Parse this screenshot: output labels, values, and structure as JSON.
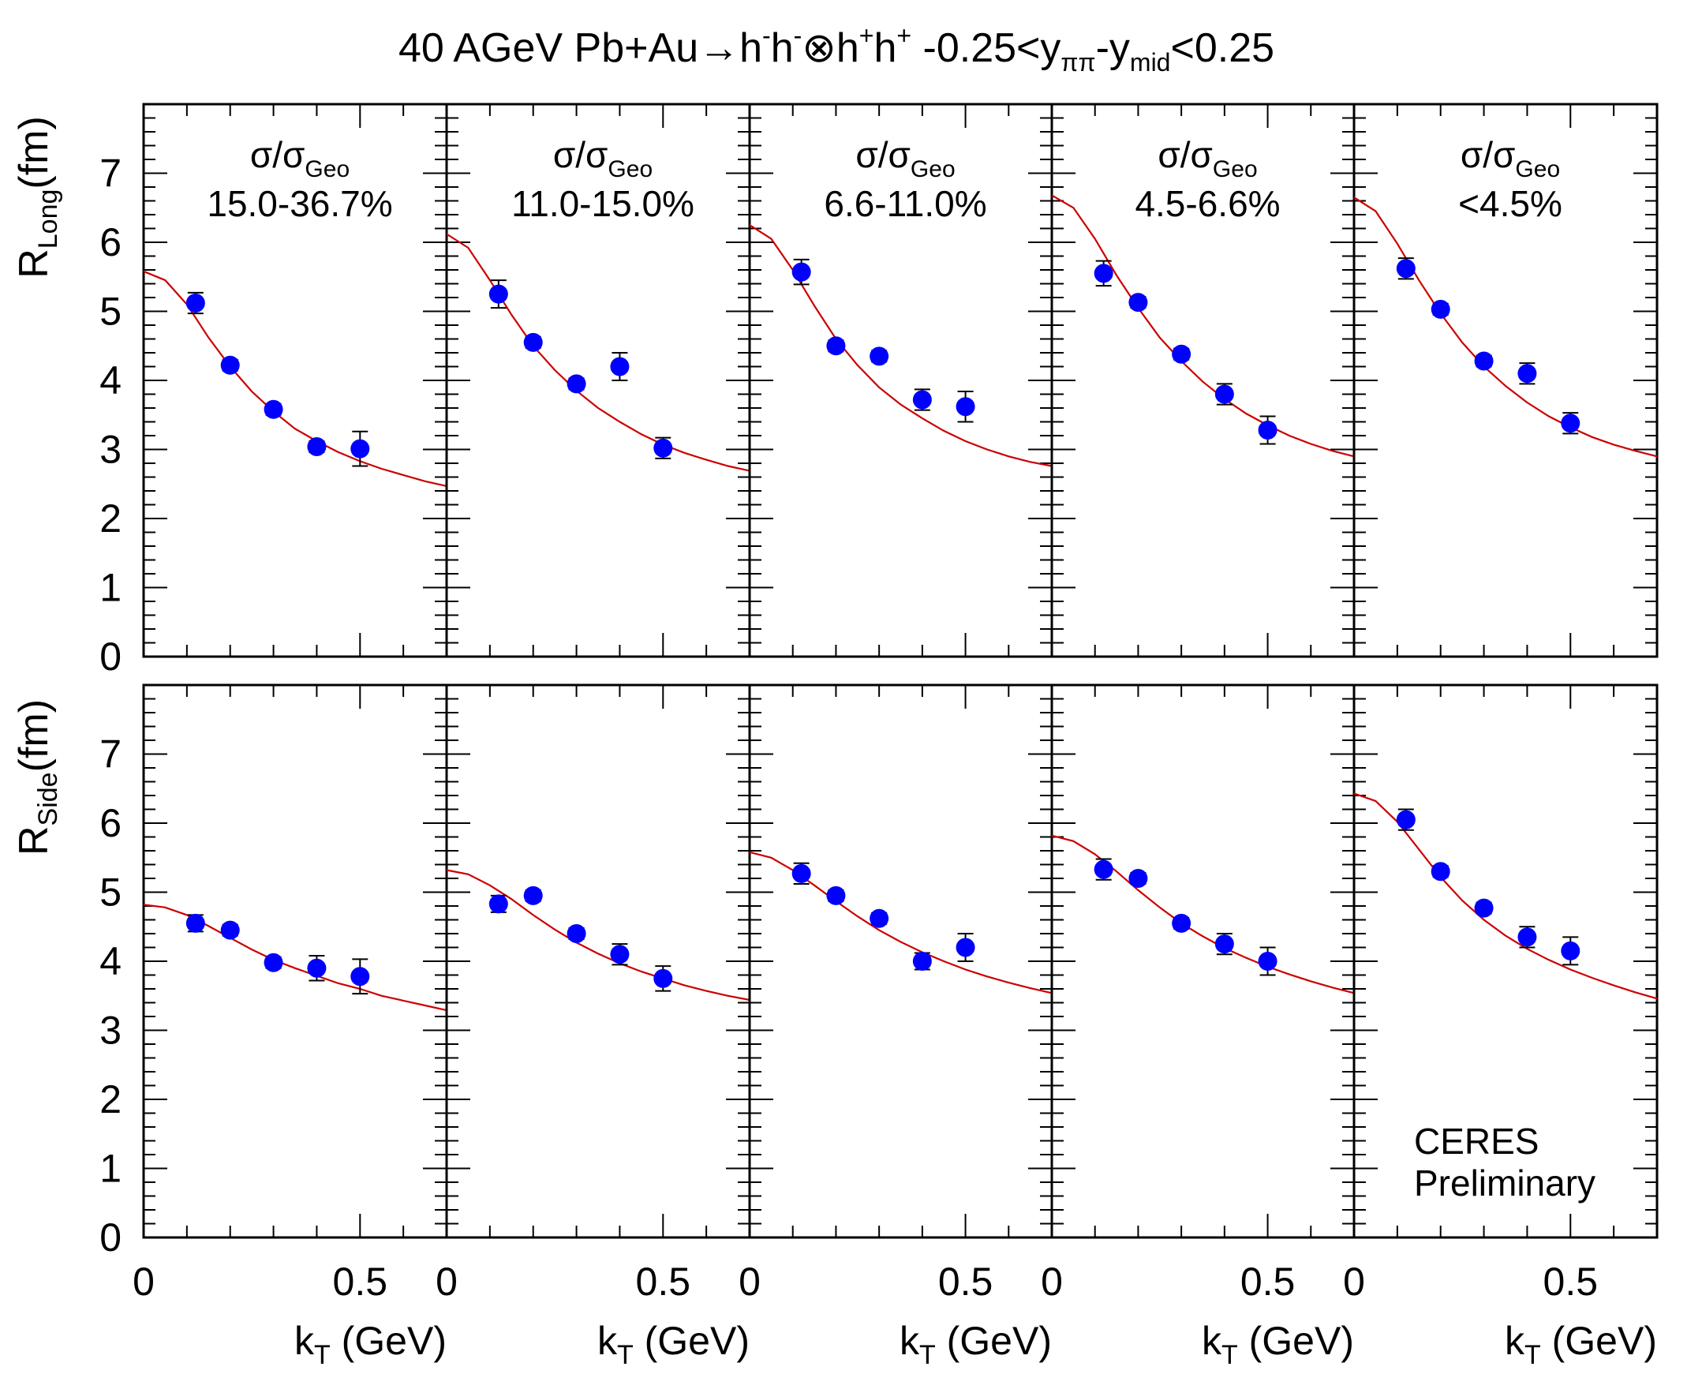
{
  "figure": {
    "title": "40 AGeV Pb+Au→h⁻h⁻⊗h⁺h⁺ -0.25<y_ππ-y_mid<0.25",
    "title_parts": {
      "main": "40 AGeV Pb+Au→h",
      "sup1": "-",
      "h2": "h",
      "sup2": "-",
      "otimes": "⊗h",
      "sup3": "+",
      "h4": "h",
      "sup4": "+",
      "range_left": " -0.25<y",
      "sub_pipi": "ππ",
      "dash_y": "-y",
      "sub_mid": "mid",
      "range_right": "<0.25"
    },
    "watermark_line1": "CERES",
    "watermark_line2": "Preliminary",
    "marker_color": "#0000ff",
    "fit_color": "#cc0000"
  },
  "chart_data": {
    "type": "scatter",
    "x_label": "k_T (GeV)",
    "x_label_base": "k",
    "x_label_sub": "T",
    "x_label_rest": " (GeV)",
    "xlim": [
      0,
      0.7
    ],
    "x_ticks": [
      "0",
      "0.5"
    ],
    "x_tick_values": [
      0,
      0.5
    ],
    "ylim": [
      0,
      8
    ],
    "y_ticks": [
      "0",
      "1",
      "2",
      "3",
      "4",
      "5",
      "6",
      "7"
    ],
    "y_tick_values": [
      0,
      1,
      2,
      3,
      4,
      5,
      6,
      7
    ],
    "legend": "none",
    "grid": false,
    "panels_header": "σ/σ_Geo",
    "header_base": "σ/σ",
    "header_sub": "Geo",
    "centralities": [
      "15.0-36.7%",
      "11.0-15.0%",
      "6.6-11.0%",
      "4.5-6.6%",
      "<4.5%"
    ],
    "rows": [
      {
        "quantity": "R_Long(fm)",
        "ylabel_base": "R",
        "ylabel_sub": "Long",
        "ylabel_rest": "(fm)",
        "panels": [
          {
            "x": [
              0.12,
              0.2,
              0.3,
              0.4,
              0.5
            ],
            "y": [
              5.12,
              4.22,
              3.58,
              3.04,
              3.01
            ],
            "yerr": [
              0.15,
              0.08,
              0.08,
              0.08,
              0.25
            ],
            "fit_x": [
              0.0,
              0.05,
              0.1,
              0.15,
              0.2,
              0.25,
              0.3,
              0.35,
              0.4,
              0.45,
              0.5,
              0.55,
              0.6,
              0.65,
              0.7
            ],
            "fit_y": [
              5.58,
              5.45,
              5.1,
              4.62,
              4.2,
              3.84,
              3.55,
              3.3,
              3.12,
              2.96,
              2.83,
              2.72,
              2.63,
              2.54,
              2.47
            ]
          },
          {
            "x": [
              0.12,
              0.2,
              0.3,
              0.4,
              0.5
            ],
            "y": [
              5.25,
              4.55,
              3.95,
              4.2,
              3.02
            ],
            "yerr": [
              0.2,
              0.08,
              0.08,
              0.2,
              0.15
            ],
            "fit_x": [
              0.0,
              0.05,
              0.1,
              0.15,
              0.2,
              0.25,
              0.3,
              0.35,
              0.4,
              0.45,
              0.5,
              0.55,
              0.6,
              0.65,
              0.7
            ],
            "fit_y": [
              6.12,
              5.92,
              5.45,
              4.95,
              4.5,
              4.15,
              3.85,
              3.6,
              3.4,
              3.22,
              3.07,
              2.95,
              2.85,
              2.76,
              2.69
            ]
          },
          {
            "x": [
              0.12,
              0.2,
              0.3,
              0.4,
              0.5
            ],
            "y": [
              5.57,
              4.5,
              4.35,
              3.72,
              3.62
            ],
            "yerr": [
              0.18,
              0.08,
              0.08,
              0.15,
              0.22
            ],
            "fit_x": [
              0.0,
              0.05,
              0.1,
              0.15,
              0.2,
              0.25,
              0.3,
              0.35,
              0.4,
              0.45,
              0.5,
              0.55,
              0.6,
              0.65,
              0.7
            ],
            "fit_y": [
              6.25,
              6.05,
              5.6,
              5.08,
              4.6,
              4.22,
              3.9,
              3.65,
              3.45,
              3.27,
              3.12,
              3.0,
              2.9,
              2.82,
              2.76
            ]
          },
          {
            "x": [
              0.12,
              0.2,
              0.3,
              0.4,
              0.5
            ],
            "y": [
              5.55,
              5.13,
              4.38,
              3.8,
              3.28
            ],
            "yerr": [
              0.18,
              0.08,
              0.08,
              0.15,
              0.2
            ],
            "fit_x": [
              0.0,
              0.05,
              0.1,
              0.15,
              0.2,
              0.25,
              0.3,
              0.35,
              0.4,
              0.45,
              0.5,
              0.55,
              0.6,
              0.65,
              0.7
            ],
            "fit_y": [
              6.68,
              6.5,
              6.05,
              5.52,
              5.05,
              4.62,
              4.28,
              3.98,
              3.73,
              3.52,
              3.35,
              3.2,
              3.08,
              2.98,
              2.9
            ]
          },
          {
            "x": [
              0.12,
              0.2,
              0.3,
              0.4,
              0.5
            ],
            "y": [
              5.62,
              5.03,
              4.28,
              4.1,
              3.38
            ],
            "yerr": [
              0.15,
              0.08,
              0.08,
              0.15,
              0.15
            ],
            "fit_x": [
              0.0,
              0.05,
              0.1,
              0.15,
              0.2,
              0.25,
              0.3,
              0.35,
              0.4,
              0.45,
              0.5,
              0.55,
              0.6,
              0.65,
              0.7
            ],
            "fit_y": [
              6.65,
              6.45,
              5.98,
              5.45,
              4.97,
              4.55,
              4.2,
              3.92,
              3.68,
              3.48,
              3.32,
              3.18,
              3.07,
              2.98,
              2.9
            ]
          }
        ]
      },
      {
        "quantity": "R_Side(fm)",
        "ylabel_base": "R",
        "ylabel_sub": "Side",
        "ylabel_rest": "(fm)",
        "panels": [
          {
            "x": [
              0.12,
              0.2,
              0.3,
              0.4,
              0.5
            ],
            "y": [
              4.55,
              4.45,
              3.98,
              3.9,
              3.78
            ],
            "yerr": [
              0.12,
              0.08,
              0.08,
              0.18,
              0.25
            ],
            "fit_x": [
              0.0,
              0.05,
              0.1,
              0.15,
              0.2,
              0.25,
              0.3,
              0.35,
              0.4,
              0.45,
              0.5,
              0.55,
              0.6,
              0.65,
              0.7
            ],
            "fit_y": [
              4.82,
              4.78,
              4.67,
              4.51,
              4.34,
              4.17,
              4.02,
              3.9,
              3.79,
              3.68,
              3.6,
              3.5,
              3.43,
              3.36,
              3.29
            ]
          },
          {
            "x": [
              0.12,
              0.2,
              0.3,
              0.4,
              0.5
            ],
            "y": [
              4.83,
              4.95,
              4.4,
              4.1,
              3.75
            ],
            "yerr": [
              0.12,
              0.08,
              0.08,
              0.15,
              0.18
            ],
            "fit_x": [
              0.0,
              0.05,
              0.1,
              0.15,
              0.2,
              0.25,
              0.3,
              0.35,
              0.4,
              0.45,
              0.5,
              0.55,
              0.6,
              0.65,
              0.7
            ],
            "fit_y": [
              5.32,
              5.26,
              5.1,
              4.9,
              4.67,
              4.46,
              4.27,
              4.11,
              3.97,
              3.85,
              3.75,
              3.65,
              3.57,
              3.5,
              3.44
            ]
          },
          {
            "x": [
              0.12,
              0.2,
              0.3,
              0.4,
              0.5
            ],
            "y": [
              5.27,
              4.95,
              4.62,
              4.0,
              4.2
            ],
            "yerr": [
              0.15,
              0.08,
              0.08,
              0.12,
              0.2
            ],
            "fit_x": [
              0.0,
              0.05,
              0.1,
              0.15,
              0.2,
              0.25,
              0.3,
              0.35,
              0.4,
              0.45,
              0.5,
              0.55,
              0.6,
              0.65,
              0.7
            ],
            "fit_y": [
              5.58,
              5.5,
              5.32,
              5.1,
              4.87,
              4.65,
              4.45,
              4.28,
              4.13,
              4.0,
              3.88,
              3.78,
              3.69,
              3.61,
              3.54
            ]
          },
          {
            "x": [
              0.12,
              0.2,
              0.3,
              0.4,
              0.5
            ],
            "y": [
              5.33,
              5.2,
              4.55,
              4.25,
              4.0
            ],
            "yerr": [
              0.15,
              0.08,
              0.08,
              0.15,
              0.2
            ],
            "fit_x": [
              0.0,
              0.05,
              0.1,
              0.15,
              0.2,
              0.25,
              0.3,
              0.35,
              0.4,
              0.45,
              0.5,
              0.55,
              0.6,
              0.65,
              0.7
            ],
            "fit_y": [
              5.82,
              5.74,
              5.55,
              5.3,
              5.03,
              4.78,
              4.55,
              4.36,
              4.19,
              4.05,
              3.92,
              3.81,
              3.71,
              3.62,
              3.54
            ]
          },
          {
            "x": [
              0.12,
              0.2,
              0.3,
              0.4,
              0.5
            ],
            "y": [
              6.05,
              5.3,
              4.77,
              4.35,
              4.15
            ],
            "yerr": [
              0.15,
              0.08,
              0.08,
              0.15,
              0.2
            ],
            "fit_x": [
              0.0,
              0.05,
              0.1,
              0.15,
              0.2,
              0.25,
              0.3,
              0.35,
              0.4,
              0.45,
              0.5,
              0.55,
              0.6,
              0.65,
              0.7
            ],
            "fit_y": [
              6.43,
              6.32,
              6.02,
              5.62,
              5.22,
              4.88,
              4.6,
              4.37,
              4.18,
              4.02,
              3.88,
              3.76,
              3.65,
              3.55,
              3.46
            ]
          }
        ]
      }
    ]
  }
}
